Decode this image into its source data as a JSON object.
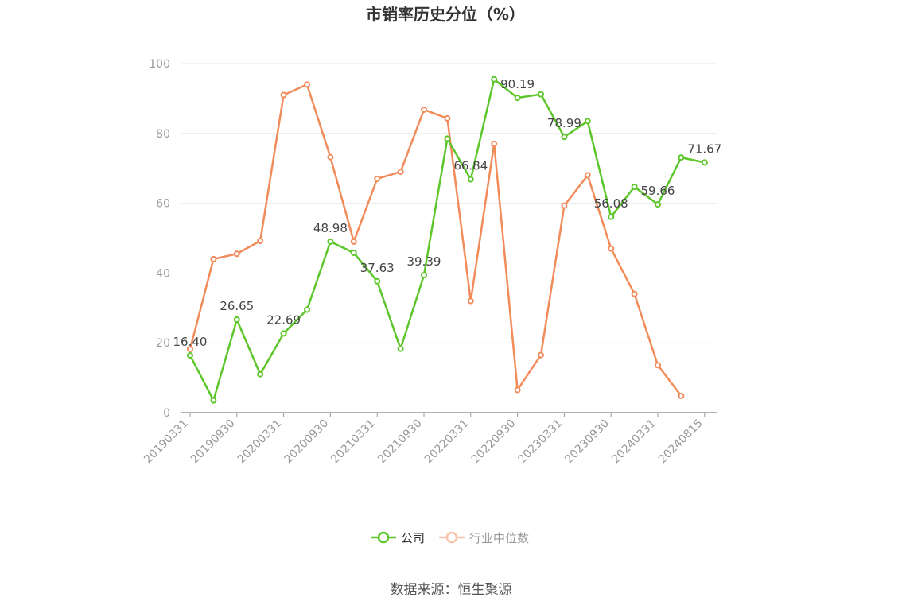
{
  "chart_data": {
    "type": "line",
    "title": "市销率历史分位（%）",
    "source": "数据来源：恒生聚源",
    "ylim": [
      0,
      100
    ],
    "yticks": [
      0,
      20,
      40,
      60,
      80,
      100
    ],
    "xtick_labels": [
      "20190331",
      "20190930",
      "20200331",
      "20200930",
      "20210331",
      "20210930",
      "20220331",
      "20220930",
      "20230331",
      "20230930",
      "20240331",
      "20240815"
    ],
    "grid": true,
    "legend_position": "bottom-center",
    "x": [
      "20190331",
      "20190630",
      "20190930",
      "20191231",
      "20200331",
      "20200630",
      "20200930",
      "20201231",
      "20210331",
      "20210630",
      "20210930",
      "20211231",
      "20220331",
      "20220630",
      "20220930",
      "20221231",
      "20230331",
      "20230630",
      "20230930",
      "20231231",
      "20240331",
      "20240630",
      "20240815"
    ],
    "series": [
      {
        "name": "公司",
        "color": "#5cc62a",
        "active": true,
        "values": [
          16.4,
          3.5,
          26.65,
          11.0,
          22.69,
          29.5,
          48.98,
          45.8,
          37.63,
          18.3,
          39.39,
          78.5,
          66.84,
          95.5,
          90.19,
          91.2,
          78.99,
          83.5,
          56.08,
          64.7,
          59.66,
          73.1,
          71.67
        ],
        "data_labels": {
          "0": "16.40",
          "2": "26.65",
          "4": "22.69",
          "6": "48.98",
          "8": "37.63",
          "10": "39.39",
          "12": "66.84",
          "14": "90.19",
          "16": "78.99",
          "18": "56.08",
          "20": "59.66",
          "22": "71.67"
        }
      },
      {
        "name": "行业中位数",
        "color": "#f28b5a",
        "active": false,
        "values": [
          18.2,
          44.0,
          45.5,
          49.2,
          91.0,
          94.0,
          73.2,
          49.0,
          67.0,
          69.0,
          86.8,
          84.3,
          32.0,
          77.0,
          6.5,
          16.5,
          59.3,
          68.0,
          47.0,
          34.0,
          13.6,
          4.8,
          null
        ]
      }
    ]
  }
}
